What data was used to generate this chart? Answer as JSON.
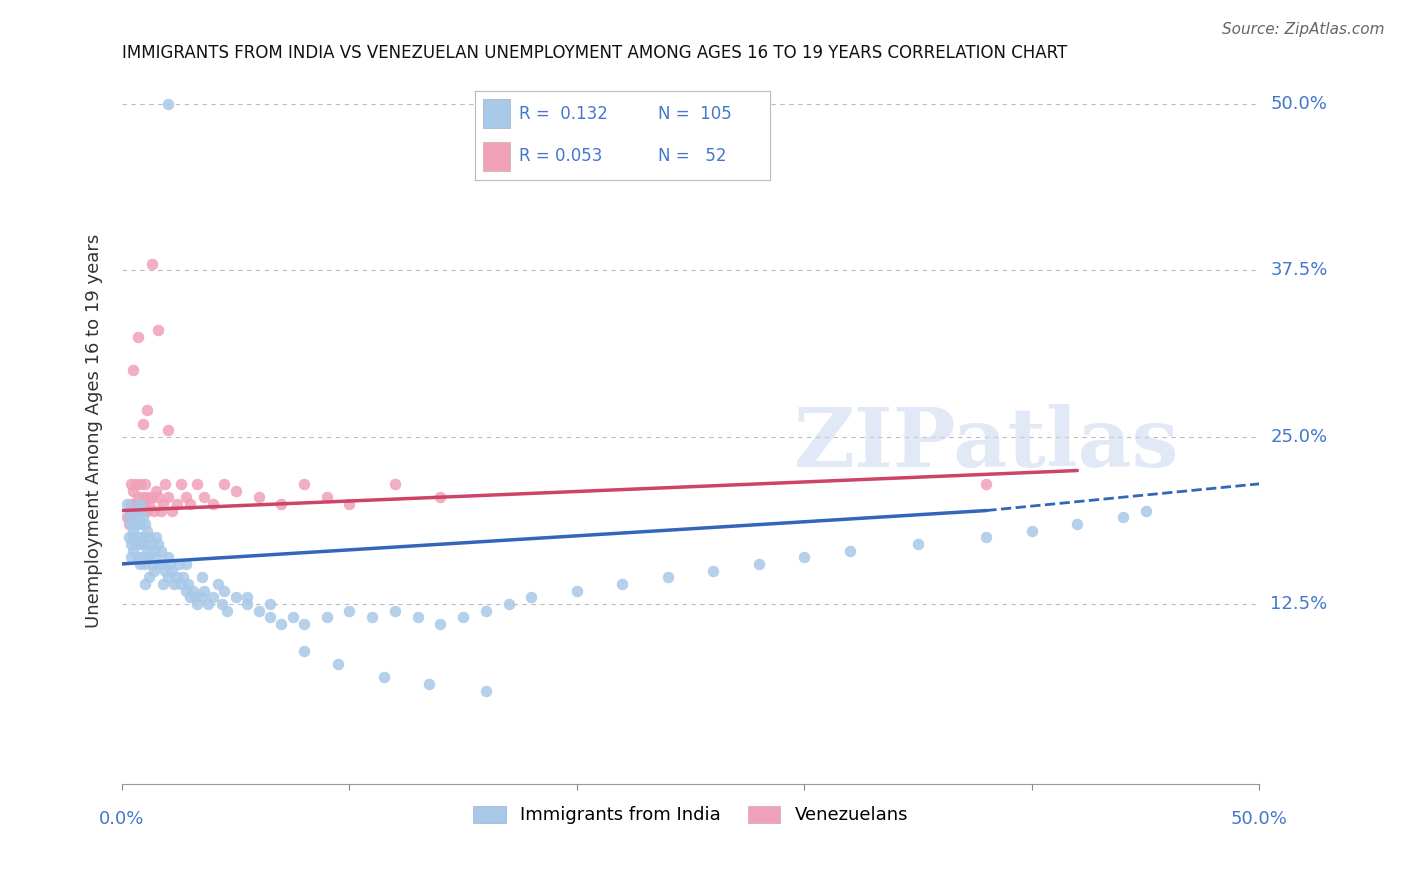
{
  "title": "IMMIGRANTS FROM INDIA VS VENEZUELAN UNEMPLOYMENT AMONG AGES 16 TO 19 YEARS CORRELATION CHART",
  "source": "Source: ZipAtlas.com",
  "ylabel": "Unemployment Among Ages 16 to 19 years",
  "legend_bottom": [
    "Immigrants from India",
    "Venezuelans"
  ],
  "watermark": "ZIPatlas",
  "blue_color": "#A8C8E8",
  "pink_color": "#F0A0B8",
  "line_blue": "#3366BB",
  "line_pink": "#CC4466",
  "background": "#FFFFFF",
  "grid_color": "#BBBBBB",
  "axis_label_color": "#4477CC",
  "title_fontsize": 12,
  "source_fontsize": 11,
  "scatter_size": 60,
  "x_range": [
    0.0,
    0.5
  ],
  "y_range": [
    -0.01,
    0.52
  ],
  "y_ticks": [
    0.125,
    0.25,
    0.375,
    0.5
  ],
  "y_tick_labels": [
    "12.5%",
    "25.0%",
    "37.5%",
    "50.0%"
  ],
  "blue_line_x0": 0.0,
  "blue_line_x_solid_end": 0.38,
  "blue_line_x1": 0.5,
  "blue_line_y0": 0.155,
  "blue_line_y_solid_end": 0.195,
  "blue_line_y1": 0.215,
  "pink_line_x0": 0.0,
  "pink_line_x1": 0.42,
  "pink_line_y0": 0.195,
  "pink_line_y1": 0.225,
  "india_x": [
    0.002,
    0.003,
    0.003,
    0.004,
    0.004,
    0.004,
    0.005,
    0.005,
    0.005,
    0.006,
    0.006,
    0.006,
    0.007,
    0.007,
    0.007,
    0.008,
    0.008,
    0.008,
    0.008,
    0.009,
    0.009,
    0.009,
    0.01,
    0.01,
    0.01,
    0.01,
    0.011,
    0.011,
    0.012,
    0.012,
    0.012,
    0.013,
    0.013,
    0.014,
    0.014,
    0.015,
    0.015,
    0.016,
    0.016,
    0.017,
    0.018,
    0.018,
    0.019,
    0.02,
    0.02,
    0.021,
    0.022,
    0.023,
    0.024,
    0.025,
    0.026,
    0.027,
    0.028,
    0.029,
    0.03,
    0.031,
    0.032,
    0.033,
    0.035,
    0.036,
    0.038,
    0.04,
    0.042,
    0.044,
    0.046,
    0.05,
    0.055,
    0.06,
    0.065,
    0.07,
    0.075,
    0.08,
    0.09,
    0.1,
    0.11,
    0.12,
    0.13,
    0.14,
    0.15,
    0.16,
    0.17,
    0.18,
    0.2,
    0.22,
    0.24,
    0.26,
    0.28,
    0.3,
    0.32,
    0.35,
    0.38,
    0.4,
    0.42,
    0.44,
    0.45,
    0.028,
    0.035,
    0.045,
    0.055,
    0.065,
    0.08,
    0.095,
    0.115,
    0.135,
    0.16,
    0.02
  ],
  "india_y": [
    0.2,
    0.19,
    0.175,
    0.185,
    0.17,
    0.16,
    0.18,
    0.165,
    0.175,
    0.195,
    0.185,
    0.17,
    0.19,
    0.175,
    0.16,
    0.2,
    0.185,
    0.17,
    0.155,
    0.19,
    0.175,
    0.16,
    0.185,
    0.17,
    0.155,
    0.14,
    0.18,
    0.165,
    0.175,
    0.16,
    0.145,
    0.17,
    0.155,
    0.165,
    0.15,
    0.175,
    0.16,
    0.17,
    0.155,
    0.165,
    0.155,
    0.14,
    0.15,
    0.16,
    0.145,
    0.155,
    0.15,
    0.14,
    0.145,
    0.155,
    0.14,
    0.145,
    0.135,
    0.14,
    0.13,
    0.135,
    0.13,
    0.125,
    0.13,
    0.135,
    0.125,
    0.13,
    0.14,
    0.125,
    0.12,
    0.13,
    0.125,
    0.12,
    0.115,
    0.11,
    0.115,
    0.11,
    0.115,
    0.12,
    0.115,
    0.12,
    0.115,
    0.11,
    0.115,
    0.12,
    0.125,
    0.13,
    0.135,
    0.14,
    0.145,
    0.15,
    0.155,
    0.16,
    0.165,
    0.17,
    0.175,
    0.18,
    0.185,
    0.19,
    0.195,
    0.155,
    0.145,
    0.135,
    0.13,
    0.125,
    0.09,
    0.08,
    0.07,
    0.065,
    0.06,
    0.5
  ],
  "venezuela_x": [
    0.002,
    0.003,
    0.004,
    0.004,
    0.005,
    0.005,
    0.006,
    0.006,
    0.007,
    0.007,
    0.008,
    0.008,
    0.009,
    0.009,
    0.01,
    0.01,
    0.011,
    0.011,
    0.012,
    0.013,
    0.014,
    0.015,
    0.016,
    0.017,
    0.018,
    0.019,
    0.02,
    0.022,
    0.024,
    0.026,
    0.028,
    0.03,
    0.033,
    0.036,
    0.04,
    0.045,
    0.05,
    0.06,
    0.07,
    0.08,
    0.09,
    0.1,
    0.12,
    0.14,
    0.38,
    0.005,
    0.007,
    0.009,
    0.011,
    0.013,
    0.016,
    0.02
  ],
  "venezuela_y": [
    0.19,
    0.185,
    0.2,
    0.215,
    0.195,
    0.21,
    0.2,
    0.215,
    0.195,
    0.205,
    0.2,
    0.215,
    0.205,
    0.195,
    0.2,
    0.215,
    0.205,
    0.195,
    0.2,
    0.205,
    0.195,
    0.21,
    0.205,
    0.195,
    0.2,
    0.215,
    0.205,
    0.195,
    0.2,
    0.215,
    0.205,
    0.2,
    0.215,
    0.205,
    0.2,
    0.215,
    0.21,
    0.205,
    0.2,
    0.215,
    0.205,
    0.2,
    0.215,
    0.205,
    0.215,
    0.3,
    0.325,
    0.26,
    0.27,
    0.38,
    0.33,
    0.255
  ]
}
